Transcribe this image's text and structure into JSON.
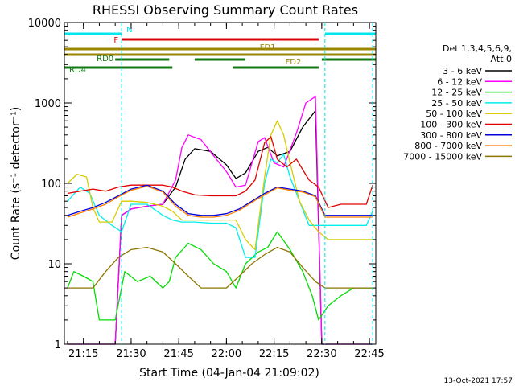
{
  "chart_data": {
    "type": "line",
    "title": "RHESSI Observing Summary Count Rates",
    "xlabel": "Start Time (04-Jan-04 21:09:02)",
    "ylabel": "Count Rate (s⁻¹ detector⁻¹)",
    "yscale": "log",
    "ylim": [
      1,
      10000
    ],
    "xlim": [
      "21:09",
      "22:47"
    ],
    "xticks": [
      "21:15",
      "21:30",
      "21:45",
      "22:00",
      "22:15",
      "22:30",
      "22:45"
    ],
    "yticks": [
      "1",
      "10",
      "100",
      "1000",
      "10000"
    ],
    "timestamp": "13-Oct-2021 17:57",
    "legend": {
      "header": [
        "Det 1,3,4,5,6,9,",
        "Att 0"
      ],
      "placement": "right"
    },
    "flag_bars": [
      {
        "label": "N",
        "color": "#00e5ee",
        "segments": [
          [
            "21:09",
            "21:27"
          ],
          [
            "22:31",
            "22:47"
          ]
        ]
      },
      {
        "label": "F",
        "color": "#e00000",
        "segments": [
          [
            "21:27",
            "22:29"
          ]
        ]
      },
      {
        "label": "FD1",
        "color": "#9a8600",
        "segments": [
          [
            "21:09",
            "22:47"
          ]
        ]
      },
      {
        "label": "FD2",
        "color": "#9a8600",
        "segments": [
          [
            "21:09",
            "22:47"
          ]
        ]
      },
      {
        "label": "RD0",
        "color": "#107a10",
        "segments": [
          [
            "21:25",
            "21:42"
          ],
          [
            "21:50",
            "22:06"
          ],
          [
            "22:30",
            "22:47"
          ]
        ]
      },
      {
        "label": "RD4",
        "color": "#107a10",
        "segments": [
          [
            "21:09",
            "21:43"
          ],
          [
            "22:02",
            "22:29"
          ]
        ]
      }
    ],
    "series": [
      {
        "name": "3 - 6 keV",
        "color": "#000000",
        "x": [
          "21:10",
          "21:15",
          "21:20",
          "21:25",
          "21:27",
          "21:30",
          "21:35",
          "21:40",
          "21:44",
          "21:47",
          "21:50",
          "21:55",
          "22:00",
          "22:03",
          "22:06",
          "22:10",
          "22:13",
          "22:16",
          "22:20",
          "22:24",
          "22:28",
          "22:30",
          "22:33",
          "22:36",
          "22:40",
          "22:44",
          "22:46"
        ],
        "y": [
          1,
          1,
          1,
          1,
          40,
          48,
          52,
          55,
          90,
          200,
          270,
          250,
          170,
          115,
          135,
          250,
          280,
          220,
          250,
          500,
          800,
          1,
          1,
          1,
          1,
          1,
          1
        ]
      },
      {
        "name": "6 - 12 keV",
        "color": "#ff00ff",
        "x": [
          "21:10",
          "21:15",
          "21:20",
          "21:25",
          "21:27",
          "21:30",
          "21:35",
          "21:40",
          "21:44",
          "21:46",
          "21:48",
          "21:52",
          "21:56",
          "22:00",
          "22:03",
          "22:06",
          "22:10",
          "22:12",
          "22:15",
          "22:18",
          "22:22",
          "22:25",
          "22:28",
          "22:30",
          "22:33",
          "22:37",
          "22:41",
          "22:45",
          "22:46"
        ],
        "y": [
          1,
          1,
          1,
          1,
          40,
          48,
          52,
          55,
          110,
          280,
          400,
          350,
          220,
          140,
          90,
          95,
          330,
          370,
          180,
          160,
          420,
          1000,
          1200,
          1,
          1,
          1,
          1,
          1,
          1
        ]
      },
      {
        "name": "12 - 25 keV",
        "color": "#00dd00",
        "x": [
          "21:10",
          "21:12",
          "21:15",
          "21:18",
          "21:20",
          "21:25",
          "21:28",
          "21:32",
          "21:36",
          "21:40",
          "21:42",
          "21:44",
          "21:48",
          "21:52",
          "21:56",
          "22:00",
          "22:03",
          "22:06",
          "22:10",
          "22:13",
          "22:16",
          "22:20",
          "22:24",
          "22:27",
          "22:29",
          "22:32",
          "22:36",
          "22:40",
          "22:44",
          "22:46"
        ],
        "y": [
          5,
          8,
          7,
          6,
          2,
          2,
          8,
          6,
          7,
          5,
          6,
          12,
          18,
          15,
          10,
          8,
          5,
          10,
          14,
          16,
          25,
          15,
          8,
          4,
          2,
          3,
          4,
          5,
          5,
          5
        ]
      },
      {
        "name": "25 - 50 keV",
        "color": "#00eeee",
        "x": [
          "21:10",
          "21:14",
          "21:17",
          "21:20",
          "21:24",
          "21:27",
          "21:30",
          "21:35",
          "21:40",
          "21:43",
          "21:46",
          "21:50",
          "21:55",
          "22:00",
          "22:03",
          "22:06",
          "22:09",
          "22:12",
          "22:14",
          "22:16",
          "22:18",
          "22:20",
          "22:23",
          "22:26",
          "22:29",
          "22:32",
          "22:36",
          "22:40",
          "22:44",
          "22:46"
        ],
        "y": [
          60,
          90,
          75,
          40,
          30,
          25,
          55,
          55,
          40,
          35,
          33,
          33,
          32,
          32,
          28,
          12,
          12,
          100,
          200,
          180,
          230,
          120,
          60,
          30,
          30,
          30,
          30,
          30,
          30,
          45
        ]
      },
      {
        "name": "50 - 100 keV",
        "color": "#d9cc00",
        "x": [
          "21:10",
          "21:13",
          "21:16",
          "21:18",
          "21:20",
          "21:24",
          "21:27",
          "21:30",
          "21:35",
          "21:40",
          "21:43",
          "21:46",
          "21:50",
          "21:55",
          "22:00",
          "22:03",
          "22:06",
          "22:09",
          "22:12",
          "22:14",
          "22:16",
          "22:18",
          "22:20",
          "22:23",
          "22:26",
          "22:29",
          "22:32",
          "22:36",
          "22:40",
          "22:44",
          "22:46"
        ],
        "y": [
          100,
          130,
          120,
          50,
          33,
          33,
          60,
          60,
          58,
          52,
          45,
          35,
          35,
          35,
          35,
          35,
          20,
          15,
          120,
          400,
          600,
          400,
          180,
          60,
          35,
          25,
          20,
          20,
          20,
          20,
          20
        ]
      },
      {
        "name": "100 - 300 keV",
        "color": "#e00000",
        "x": [
          "21:10",
          "21:14",
          "21:18",
          "21:22",
          "21:26",
          "21:30",
          "21:35",
          "21:40",
          "21:43",
          "21:46",
          "21:50",
          "21:55",
          "22:00",
          "22:03",
          "22:06",
          "22:09",
          "22:12",
          "22:14",
          "22:16",
          "22:19",
          "22:22",
          "22:26",
          "22:29",
          "22:32",
          "22:36",
          "22:40",
          "22:44",
          "22:46"
        ],
        "y": [
          75,
          80,
          85,
          80,
          90,
          95,
          95,
          95,
          90,
          80,
          72,
          70,
          70,
          70,
          80,
          110,
          320,
          380,
          200,
          160,
          200,
          110,
          90,
          50,
          55,
          55,
          55,
          95
        ]
      },
      {
        "name": "300 - 800 keV",
        "color": "#0000dd",
        "x": [
          "21:10",
          "21:14",
          "21:18",
          "21:22",
          "21:26",
          "21:30",
          "21:35",
          "21:40",
          "21:44",
          "21:48",
          "21:52",
          "21:56",
          "22:00",
          "22:04",
          "22:08",
          "22:12",
          "22:16",
          "22:20",
          "22:24",
          "22:28",
          "22:31",
          "22:34",
          "22:38",
          "22:42",
          "22:46"
        ],
        "y": [
          40,
          45,
          50,
          58,
          70,
          85,
          95,
          80,
          55,
          42,
          40,
          40,
          42,
          48,
          60,
          75,
          90,
          85,
          80,
          70,
          40,
          40,
          40,
          40,
          40
        ]
      },
      {
        "name": "800 - 7000 keV",
        "color": "#ff7f00",
        "x": [
          "21:10",
          "21:14",
          "21:18",
          "21:22",
          "21:26",
          "21:30",
          "21:35",
          "21:40",
          "21:44",
          "21:48",
          "21:52",
          "21:56",
          "22:00",
          "22:04",
          "22:08",
          "22:12",
          "22:16",
          "22:20",
          "22:24",
          "22:28",
          "22:31",
          "22:34",
          "22:38",
          "22:42",
          "22:46"
        ],
        "y": [
          38,
          43,
          48,
          55,
          68,
          82,
          92,
          78,
          52,
          40,
          38,
          38,
          40,
          46,
          58,
          72,
          88,
          82,
          78,
          68,
          38,
          38,
          38,
          38,
          38
        ]
      },
      {
        "name": "7000 - 15000 keV",
        "color": "#8b7500",
        "x": [
          "21:10",
          "21:14",
          "21:18",
          "21:22",
          "21:26",
          "21:30",
          "21:35",
          "21:40",
          "21:44",
          "21:48",
          "21:52",
          "21:56",
          "22:00",
          "22:04",
          "22:08",
          "22:12",
          "22:16",
          "22:20",
          "22:24",
          "22:28",
          "22:31",
          "22:34",
          "22:38",
          "22:42",
          "22:46"
        ],
        "y": [
          5,
          5,
          5,
          8,
          12,
          15,
          16,
          14,
          10,
          7,
          5,
          5,
          5,
          7,
          10,
          13,
          16,
          14,
          9,
          6,
          5,
          5,
          5,
          5,
          5
        ]
      }
    ]
  }
}
